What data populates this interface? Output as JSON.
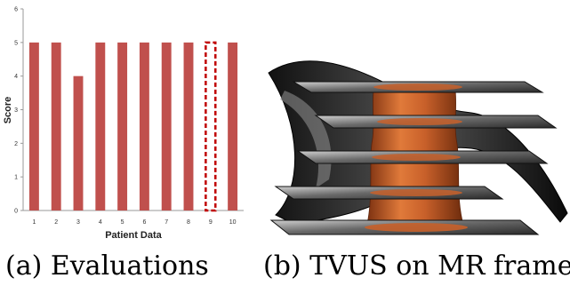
{
  "figure_a": {
    "caption": "(a) Evaluations",
    "chart_data": {
      "type": "bar",
      "categories": [
        "1",
        "2",
        "3",
        "4",
        "5",
        "6",
        "7",
        "8",
        "9",
        "10"
      ],
      "values": [
        5,
        5,
        4,
        5,
        5,
        5,
        5,
        5,
        5,
        5
      ],
      "highlighted_category": "9",
      "ylabel": "Score",
      "xlabel": "Patient Data",
      "ylim": [
        0,
        6
      ],
      "yticks": [
        "0",
        "1",
        "2",
        "3",
        "4",
        "5",
        "6"
      ],
      "bar_color": "#c0504d",
      "highlight_outline_color": "#c00000",
      "grid": false
    }
  },
  "figure_b": {
    "caption": "(b) TVUS on MR frame",
    "colors": {
      "slice_dark": "#1a1a1a",
      "slice_light": "#9a9a9a",
      "organ": "#c8602a"
    }
  }
}
